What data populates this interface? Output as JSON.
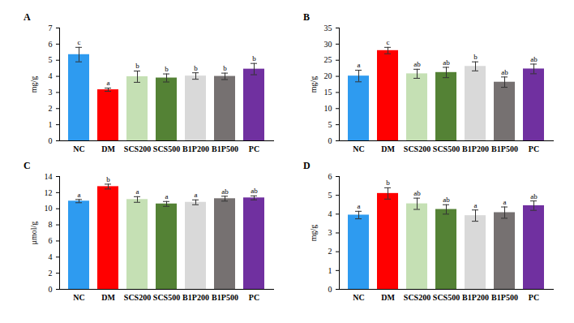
{
  "chart_data": [
    {
      "type": "bar",
      "title": "A",
      "ylabel": "mg/g",
      "categories": [
        "NC",
        "DM",
        "SCS200",
        "SCS500",
        "B1P200",
        "B1P500",
        "PC"
      ],
      "values": [
        5.35,
        3.17,
        3.98,
        3.9,
        4.02,
        4.0,
        4.45
      ],
      "errors": [
        0.45,
        0.1,
        0.35,
        0.25,
        0.2,
        0.2,
        0.35
      ],
      "letters": [
        "c",
        "a",
        "b",
        "b",
        "b",
        "b",
        "b"
      ],
      "colors": [
        "#2e9bf0",
        "#ff0000",
        "#c5e0b4",
        "#548235",
        "#d9d9d9",
        "#767171",
        "#7030a0"
      ],
      "ylim": [
        0,
        7
      ],
      "yticks": [
        0,
        1,
        2,
        3,
        4,
        5,
        6,
        7
      ]
    },
    {
      "type": "bar",
      "title": "B",
      "ylabel": "mg/g",
      "categories": [
        "NC",
        "DM",
        "SCS200",
        "SCS500",
        "B1P200",
        "B1P500",
        "PC"
      ],
      "values": [
        20.1,
        28.0,
        20.8,
        21.2,
        23.1,
        18.2,
        22.3
      ],
      "errors": [
        1.8,
        1.0,
        1.4,
        1.6,
        1.4,
        1.6,
        1.5
      ],
      "letters": [
        "a",
        "c",
        "ab",
        "ab",
        "b",
        "ab",
        "ab"
      ],
      "colors": [
        "#2e9bf0",
        "#ff0000",
        "#c5e0b4",
        "#548235",
        "#d9d9d9",
        "#767171",
        "#7030a0"
      ],
      "ylim": [
        0,
        35
      ],
      "yticks": [
        0,
        5,
        10,
        15,
        20,
        25,
        30,
        35
      ]
    },
    {
      "type": "bar",
      "title": "C",
      "ylabel": "μmol/g",
      "categories": [
        "NC",
        "DM",
        "SCS200",
        "SCS500",
        "B1P200",
        "B1P500",
        "PC"
      ],
      "values": [
        10.95,
        12.75,
        11.15,
        10.6,
        10.8,
        11.25,
        11.35
      ],
      "errors": [
        0.2,
        0.3,
        0.35,
        0.3,
        0.3,
        0.3,
        0.25
      ],
      "letters": [
        "a",
        "b",
        "a",
        "a",
        "a",
        "ab",
        "ab"
      ],
      "colors": [
        "#2e9bf0",
        "#ff0000",
        "#c5e0b4",
        "#548235",
        "#d9d9d9",
        "#767171",
        "#7030a0"
      ],
      "ylim": [
        0,
        14
      ],
      "yticks": [
        0,
        2,
        4,
        6,
        8,
        10,
        12,
        14
      ]
    },
    {
      "type": "bar",
      "title": "D",
      "ylabel": "mg/g",
      "categories": [
        "NC",
        "DM",
        "SCS200",
        "SCS500",
        "B1P200",
        "B1P500",
        "PC"
      ],
      "values": [
        3.95,
        5.1,
        4.55,
        4.25,
        3.92,
        4.08,
        4.45
      ],
      "errors": [
        0.2,
        0.3,
        0.3,
        0.25,
        0.3,
        0.3,
        0.25
      ],
      "letters": [
        "a",
        "b",
        "ab",
        "ab",
        "a",
        "a",
        "ab"
      ],
      "colors": [
        "#2e9bf0",
        "#ff0000",
        "#c5e0b4",
        "#548235",
        "#d9d9d9",
        "#767171",
        "#7030a0"
      ],
      "ylim": [
        0,
        6
      ],
      "yticks": [
        0,
        1,
        2,
        3,
        4,
        5,
        6
      ]
    }
  ]
}
